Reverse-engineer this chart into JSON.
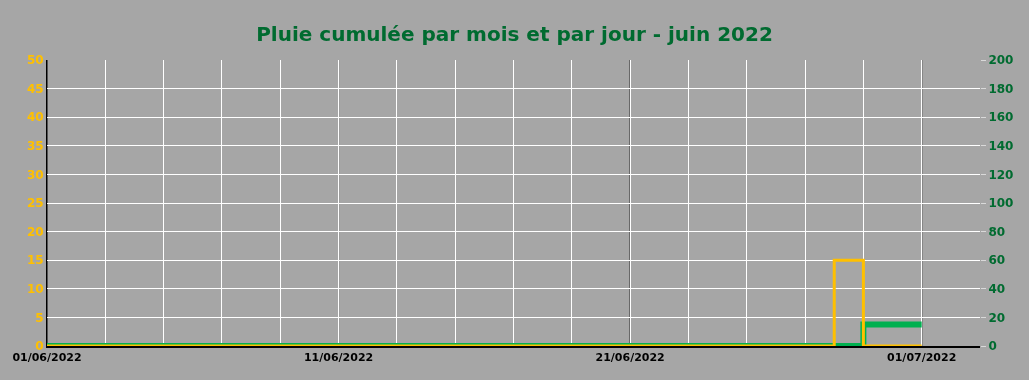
{
  "chart_data": {
    "type": "step",
    "title": "Pluie cumulée par mois et par jour - juin 2022",
    "x": [
      "2022-06-01",
      "2022-06-02",
      "2022-06-03",
      "2022-06-04",
      "2022-06-05",
      "2022-06-06",
      "2022-06-07",
      "2022-06-08",
      "2022-06-09",
      "2022-06-10",
      "2022-06-11",
      "2022-06-12",
      "2022-06-13",
      "2022-06-14",
      "2022-06-15",
      "2022-06-16",
      "2022-06-17",
      "2022-06-18",
      "2022-06-19",
      "2022-06-20",
      "2022-06-21",
      "2022-06-22",
      "2022-06-23",
      "2022-06-24",
      "2022-06-25",
      "2022-06-26",
      "2022-06-27",
      "2022-06-28",
      "2022-06-29",
      "2022-06-30",
      "2022-07-01"
    ],
    "series": [
      {
        "color": "#ffc000",
        "values": [
          0,
          0,
          0,
          0,
          0,
          0,
          0,
          0,
          0,
          0,
          0,
          0,
          0,
          0,
          0,
          0,
          0,
          0,
          0,
          0,
          0,
          0,
          0,
          0,
          0,
          0,
          0,
          15,
          0,
          0,
          0
        ]
      },
      {
        "color": "#00b050",
        "axis": "y2",
        "values": [
          0,
          0,
          0,
          0,
          0,
          0,
          0,
          0,
          0,
          0,
          0,
          0,
          0,
          0,
          0,
          0,
          0,
          0,
          0,
          0,
          0,
          0,
          0,
          0,
          0,
          0,
          0,
          0,
          15,
          15,
          15
        ]
      }
    ],
    "xlim": [
      "2022-06-01",
      "2022-07-03"
    ],
    "xticks": [
      {
        "value": "2022-06-01",
        "label": "01/06/2022"
      },
      {
        "value": "2022-06-03",
        "label": null
      },
      {
        "value": "2022-06-05",
        "label": null
      },
      {
        "value": "2022-06-07",
        "label": null
      },
      {
        "value": "2022-06-09",
        "label": null
      },
      {
        "value": "2022-06-11",
        "label": "11/06/2022"
      },
      {
        "value": "2022-06-13",
        "label": null
      },
      {
        "value": "2022-06-15",
        "label": null
      },
      {
        "value": "2022-06-17",
        "label": null
      },
      {
        "value": "2022-06-19",
        "label": null
      },
      {
        "value": "2022-06-21",
        "label": "21/06/2022"
      },
      {
        "value": "2022-06-23",
        "label": null
      },
      {
        "value": "2022-06-25",
        "label": null
      },
      {
        "value": "2022-06-27",
        "label": null
      },
      {
        "value": "2022-06-29",
        "label": null
      },
      {
        "value": "2022-07-01",
        "label": "01/07/2022"
      }
    ],
    "ylim": [
      0,
      50
    ],
    "yticks": [
      0,
      5,
      10,
      15,
      20,
      25,
      30,
      35,
      40,
      45,
      50
    ],
    "y2lim": [
      0,
      200
    ],
    "y2ticks": [
      0,
      20,
      40,
      60,
      80,
      100,
      120,
      140,
      160,
      180,
      200
    ],
    "grid": true
  }
}
